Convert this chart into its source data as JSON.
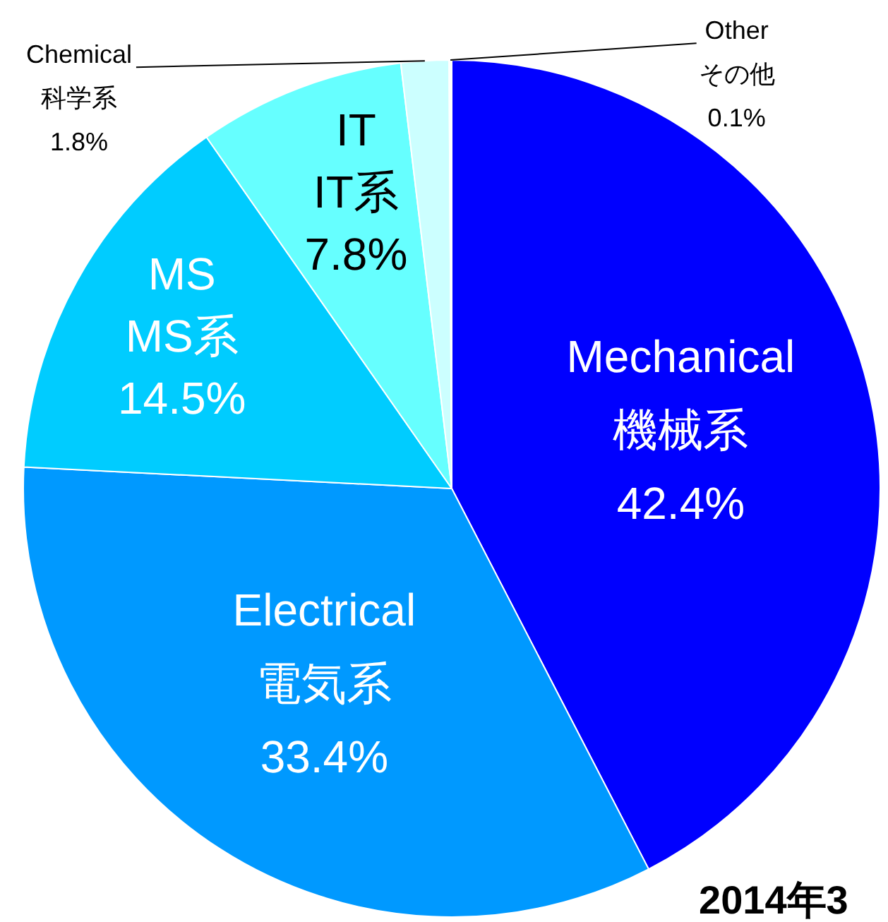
{
  "chart_data": {
    "type": "pie",
    "categories": [
      "Mechanical 機械系",
      "Electrical 電気系",
      "MS MS系",
      "IT IT系",
      "Chemical 科学系",
      "Other その他"
    ],
    "values": [
      42.4,
      33.4,
      14.5,
      7.8,
      1.8,
      0.1
    ],
    "colors": [
      "#0000ff",
      "#0099ff",
      "#00ccff",
      "#66ffff",
      "#ccffff",
      "#ffffff"
    ],
    "value_labels": [
      "42.4%",
      "33.4%",
      "14.5%",
      "7.8%",
      "1.8%",
      "0.1%"
    ],
    "annotations": [
      "2014年3"
    ]
  }
}
